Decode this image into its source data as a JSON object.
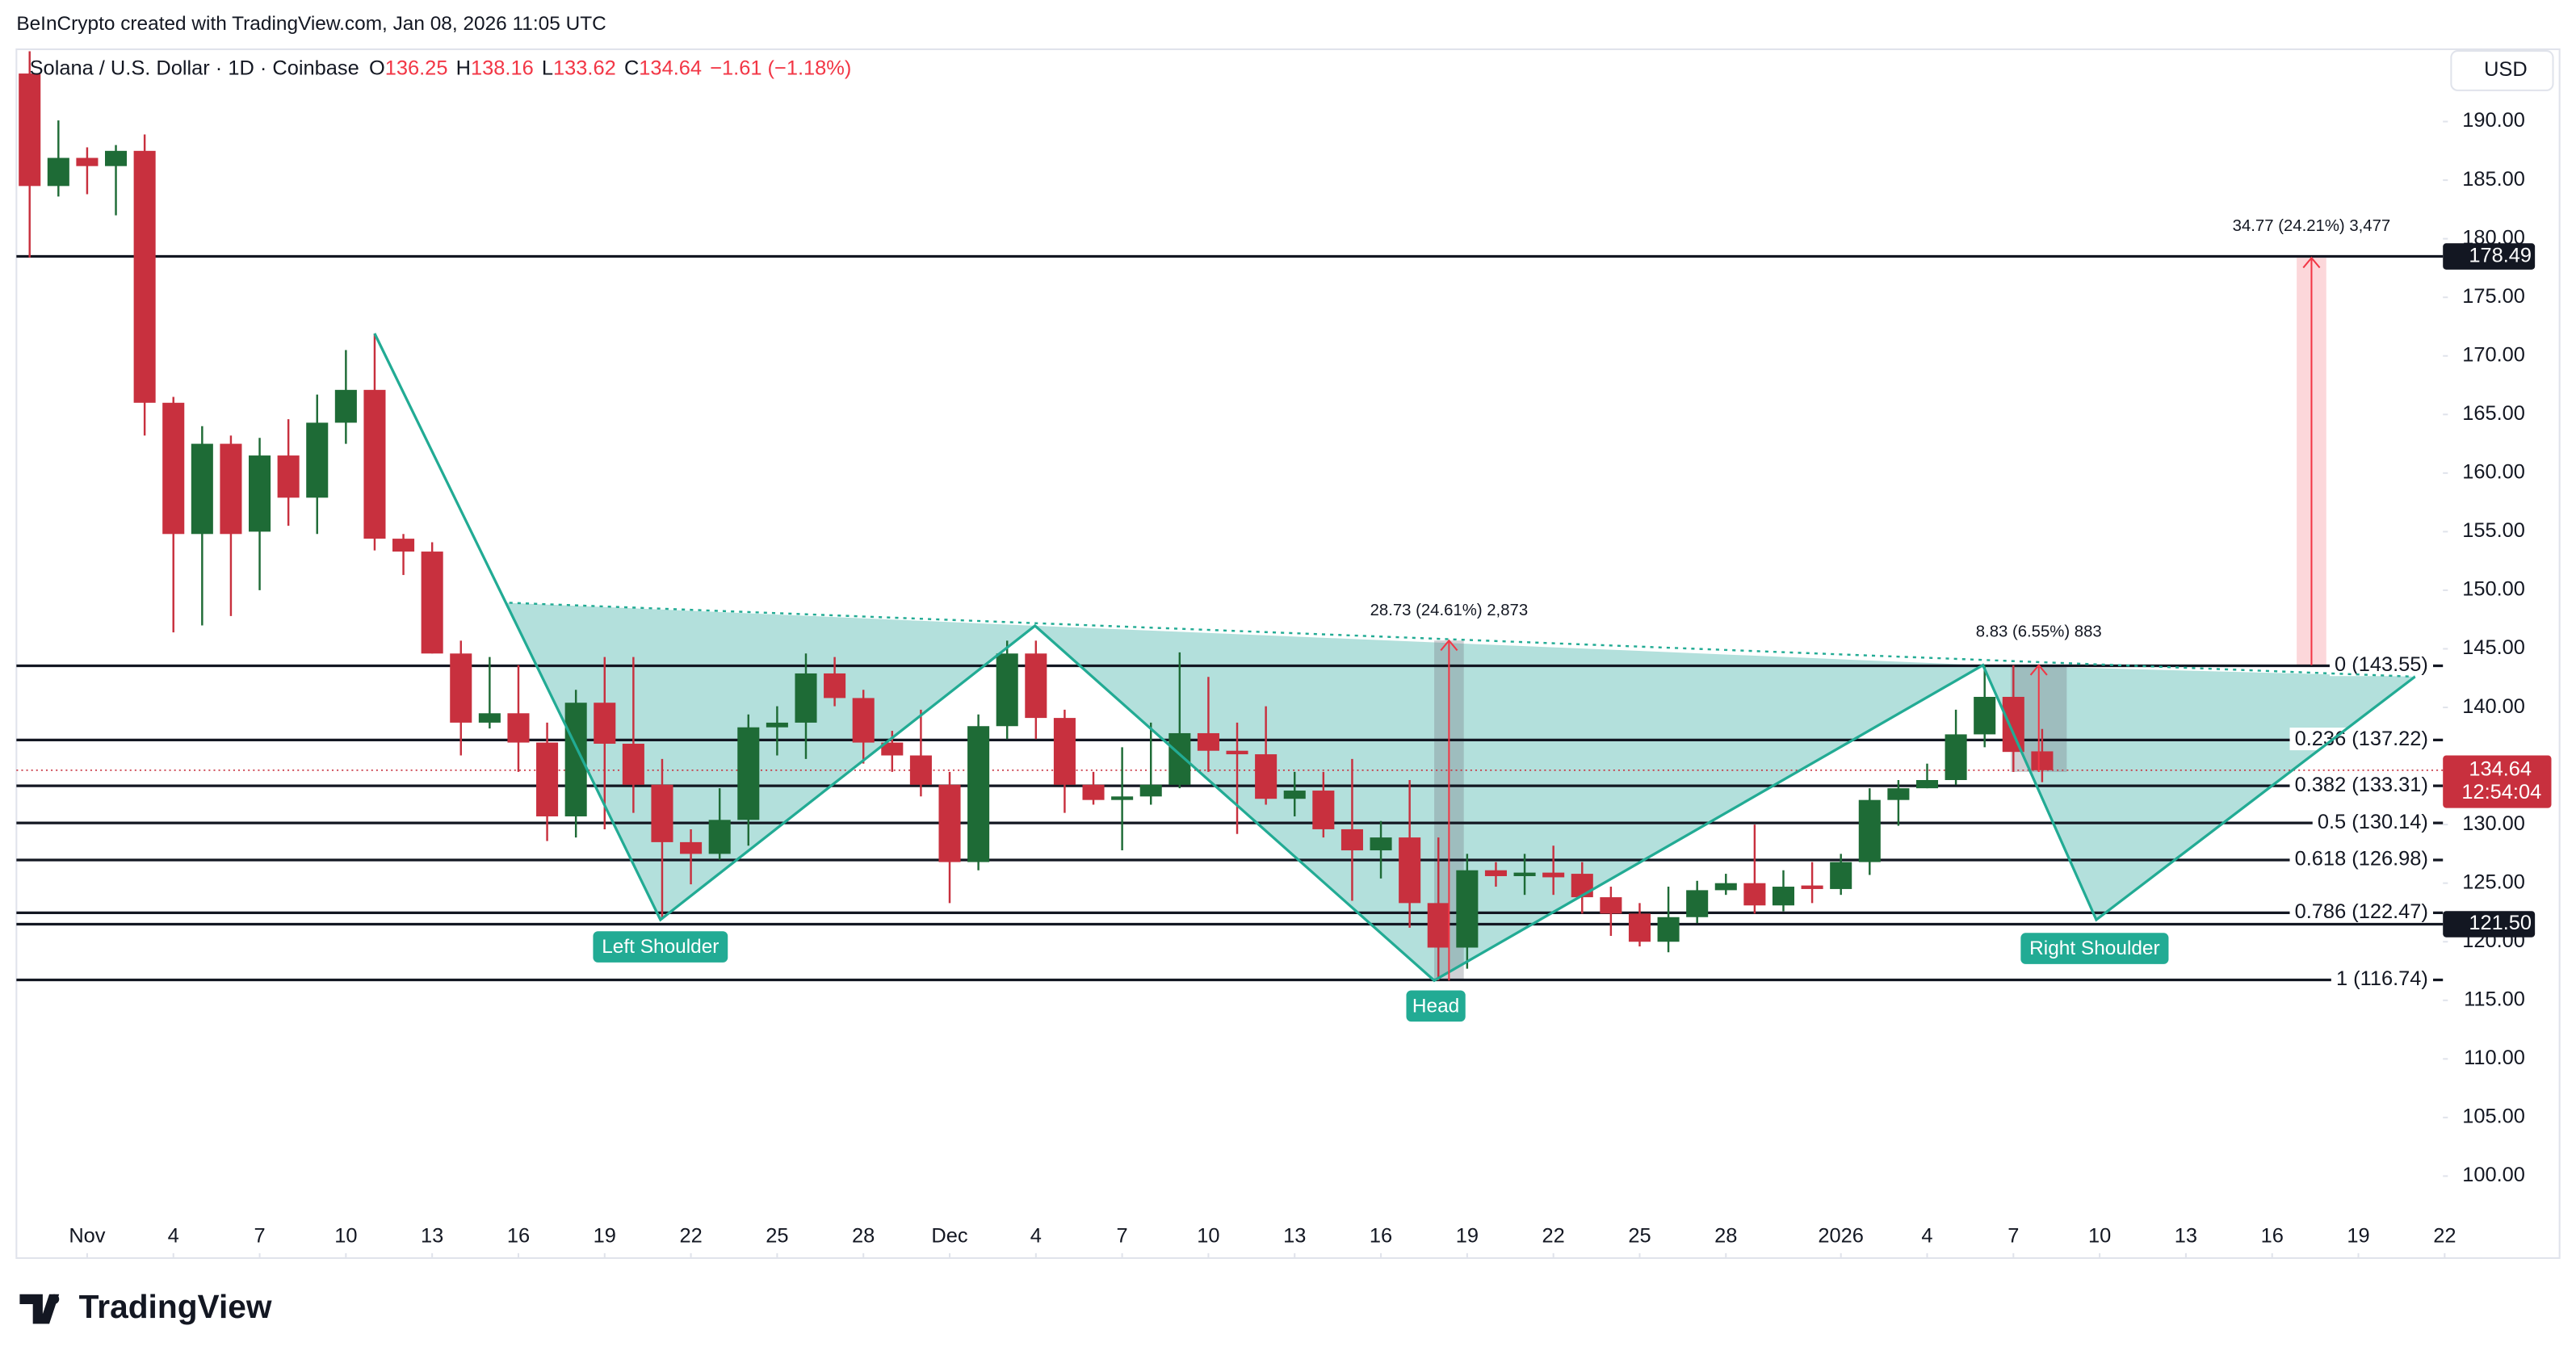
{
  "chart_data": {
    "type": "candlestick",
    "attribution": "BeInCrypto created with TradingView.com, Jan 08, 2026 11:05 UTC",
    "title": "Solana / U.S. Dollar · 1D · Coinbase",
    "ohlc_labels": [
      "O",
      "H",
      "L",
      "C"
    ],
    "change": "−1.61 (−1.18%)",
    "currency": "USD",
    "brand": "TradingView",
    "countdown": "12:54:04",
    "up_color": "#1e6b36",
    "down_color": "#c8303e",
    "x": [
      -2,
      -1,
      0,
      1,
      2,
      3,
      4,
      5,
      6,
      7,
      8,
      9,
      10,
      11,
      12,
      13,
      14,
      15,
      16,
      17,
      18,
      19,
      20,
      21,
      22,
      23,
      24,
      25,
      26,
      27,
      28,
      29,
      30,
      31,
      32,
      33,
      34,
      35,
      36,
      37,
      38,
      39,
      40,
      41,
      42,
      43,
      44,
      45,
      46,
      47,
      48,
      49,
      50,
      51,
      52,
      53,
      54,
      55,
      56,
      57,
      58,
      59,
      60,
      61,
      62,
      63,
      64,
      65,
      66,
      67,
      68
    ],
    "open": [
      194.1,
      184.5,
      186.9,
      186.2,
      187.5,
      166,
      154.8,
      162.5,
      155,
      161.5,
      157.9,
      164.3,
      167.1,
      154.4,
      153.3,
      144.6,
      138.7,
      139.5,
      137,
      130.7,
      140.4,
      136.9,
      133.4,
      128.5,
      127.5,
      130.4,
      138.3,
      138.7,
      142.9,
      140.8,
      137,
      135.9,
      133.4,
      126.8,
      138.4,
      144.6,
      139.1,
      133.4,
      132.1,
      132.4,
      133.4,
      137.8,
      136.3,
      136,
      132.2,
      132.9,
      129.6,
      127.8,
      128.9,
      123.3,
      119.5,
      126.1,
      125.6,
      125.9,
      125.8,
      123.8,
      122.4,
      120,
      122.1,
      124.4,
      125,
      123.1,
      124.8,
      124.5,
      126.8,
      132.1,
      133.1,
      133.8,
      137.7,
      140.9,
      136.25
    ],
    "high": [
      196,
      190.1,
      187.8,
      188,
      188.9,
      166.5,
      164,
      163.2,
      163,
      164.6,
      166.7,
      170.5,
      171.9,
      154.8,
      154.1,
      145.7,
      144.3,
      143.6,
      138.7,
      141.5,
      144.3,
      144.3,
      135.6,
      129.6,
      133.1,
      139.4,
      140.1,
      144.6,
      144.3,
      141.5,
      138,
      139.8,
      134.5,
      139.4,
      145.7,
      145.7,
      139.8,
      134.5,
      136.6,
      138.7,
      144.7,
      142.6,
      138.7,
      140.1,
      134.5,
      134.5,
      135.6,
      130.3,
      133.8,
      128.9,
      127.5,
      126.8,
      127.5,
      128.2,
      126.8,
      124.7,
      123.3,
      124.7,
      125.2,
      125.8,
      130,
      126.1,
      126.8,
      127.5,
      133.1,
      133.8,
      135.2,
      139.8,
      143.6,
      143.6,
      138.16
    ],
    "low": [
      178.4,
      183.6,
      183.8,
      182,
      163.2,
      146.4,
      147,
      147.8,
      150,
      155.5,
      154.8,
      162.5,
      153.4,
      151.3,
      144.6,
      135.9,
      138.2,
      134.5,
      128.6,
      128.9,
      129.6,
      131,
      121.9,
      124.9,
      127,
      128.2,
      135.9,
      135.6,
      140.1,
      135.2,
      134.5,
      132.4,
      123.3,
      126.1,
      137.3,
      137.3,
      131,
      131.7,
      127.8,
      131.7,
      133.1,
      134.5,
      129.2,
      131.7,
      130.7,
      128.9,
      123.5,
      125.4,
      121.2,
      116.7,
      117.7,
      124.7,
      124,
      124,
      122.4,
      120.5,
      119.6,
      119.1,
      121.6,
      124,
      122.4,
      122.6,
      123.3,
      124,
      125.7,
      129.9,
      133.1,
      133.4,
      136.6,
      134.5,
      133.62
    ],
    "close": [
      184.5,
      186.9,
      186.2,
      187.5,
      166,
      154.8,
      162.5,
      154.8,
      161.5,
      157.9,
      164.3,
      167.1,
      154.4,
      153.3,
      144.6,
      138.7,
      139.5,
      137,
      130.7,
      140.4,
      136.9,
      133.4,
      128.5,
      127.5,
      130.4,
      138.3,
      138.7,
      142.9,
      140.8,
      137,
      135.9,
      133.4,
      126.8,
      138.4,
      144.6,
      139.1,
      133.4,
      132.1,
      132.4,
      133.4,
      137.8,
      136.3,
      136,
      132.2,
      132.9,
      129.6,
      127.8,
      128.9,
      123.3,
      119.5,
      126.1,
      125.6,
      125.9,
      125.5,
      123.8,
      122.4,
      120,
      122.1,
      124.4,
      125,
      123.1,
      124.7,
      124.5,
      126.8,
      132.1,
      133.1,
      133.8,
      137.7,
      140.9,
      136.2,
      134.64
    ],
    "xlim": [
      -2.46,
      81.94
    ],
    "ylim": [
      93,
      196.17
    ],
    "xticks": [
      {
        "value": 0,
        "label": "Nov"
      },
      {
        "value": 3,
        "label": "4"
      },
      {
        "value": 6,
        "label": "7"
      },
      {
        "value": 9,
        "label": "10"
      },
      {
        "value": 12,
        "label": "13"
      },
      {
        "value": 15,
        "label": "16"
      },
      {
        "value": 18,
        "label": "19"
      },
      {
        "value": 21,
        "label": "22"
      },
      {
        "value": 24,
        "label": "25"
      },
      {
        "value": 27,
        "label": "28"
      },
      {
        "value": 30,
        "label": "Dec"
      },
      {
        "value": 33,
        "label": "4"
      },
      {
        "value": 36,
        "label": "7"
      },
      {
        "value": 39,
        "label": "10"
      },
      {
        "value": 42,
        "label": "13"
      },
      {
        "value": 45,
        "label": "16"
      },
      {
        "value": 48,
        "label": "19"
      },
      {
        "value": 51,
        "label": "22"
      },
      {
        "value": 54,
        "label": "25"
      },
      {
        "value": 57,
        "label": "28"
      },
      {
        "value": 61,
        "label": "2026"
      },
      {
        "value": 64,
        "label": "4"
      },
      {
        "value": 67,
        "label": "7"
      },
      {
        "value": 70,
        "label": "10"
      },
      {
        "value": 73,
        "label": "13"
      },
      {
        "value": 76,
        "label": "16"
      },
      {
        "value": 79,
        "label": "19"
      },
      {
        "value": 82,
        "label": "22"
      }
    ],
    "yticks": [
      {
        "value": 100,
        "label": "100.00"
      },
      {
        "value": 105,
        "label": "105.00"
      },
      {
        "value": 110,
        "label": "110.00"
      },
      {
        "value": 115,
        "label": "115.00"
      },
      {
        "value": 120,
        "label": "120.00"
      },
      {
        "value": 125,
        "label": "125.00"
      },
      {
        "value": 130,
        "label": "130.00"
      },
      {
        "value": 135,
        "label": "135.00"
      },
      {
        "value": 140,
        "label": "140.00"
      },
      {
        "value": 145,
        "label": "145.00"
      },
      {
        "value": 150,
        "label": "150.00"
      },
      {
        "value": 155,
        "label": "155.00"
      },
      {
        "value": 160,
        "label": "160.00"
      },
      {
        "value": 165,
        "label": "165.00"
      },
      {
        "value": 170,
        "label": "170.00"
      },
      {
        "value": 175,
        "label": "175.00"
      },
      {
        "value": 180,
        "label": "180.00"
      },
      {
        "value": 185,
        "label": "185.00"
      },
      {
        "value": 190,
        "label": "190.00"
      }
    ],
    "levels": [
      {
        "value": 178.49,
        "label": "178.49",
        "badge": true
      },
      {
        "value": 143.55,
        "label": "0 (143.55)"
      },
      {
        "value": 137.22,
        "label": "0.236 (137.22)"
      },
      {
        "value": 133.31,
        "label": "0.382 (133.31)"
      },
      {
        "value": 130.14,
        "label": "0.5 (130.14)"
      },
      {
        "value": 126.98,
        "label": "0.618 (126.98)"
      },
      {
        "value": 122.47,
        "label": "0.786 (122.47)"
      },
      {
        "value": 121.5,
        "label": "121.50",
        "badge": true
      },
      {
        "value": 116.74,
        "label": "1 (116.74)"
      }
    ],
    "annotations": {
      "left_shoulder": "Left Shoulder",
      "head": "Head",
      "right_shoulder": "Right Shoulder",
      "head_measure": "28.73 (24.61%) 2,873",
      "shoulder_measure": "8.83 (6.55%) 883",
      "target_measure": "34.77 (24.21%) 3,477"
    }
  }
}
